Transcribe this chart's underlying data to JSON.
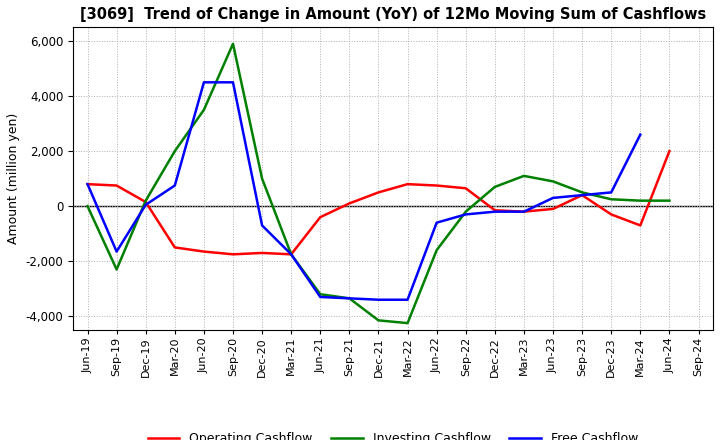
{
  "title": "[3069]  Trend of Change in Amount (YoY) of 12Mo Moving Sum of Cashflows",
  "ylabel": "Amount (million yen)",
  "x_labels": [
    "Jun-19",
    "Sep-19",
    "Dec-19",
    "Mar-20",
    "Jun-20",
    "Sep-20",
    "Dec-20",
    "Mar-21",
    "Jun-21",
    "Sep-21",
    "Dec-21",
    "Mar-22",
    "Jun-22",
    "Sep-22",
    "Dec-22",
    "Mar-23",
    "Jun-23",
    "Sep-23",
    "Dec-23",
    "Mar-24",
    "Jun-24",
    "Sep-24"
  ],
  "operating": [
    800,
    750,
    150,
    -1500,
    -1650,
    -1750,
    -1700,
    -1750,
    -400,
    100,
    500,
    800,
    750,
    650,
    -150,
    -200,
    -100,
    400,
    -300,
    -700,
    2000,
    null
  ],
  "investing": [
    0,
    -2300,
    200,
    2000,
    3500,
    5900,
    1000,
    -1750,
    -3200,
    -3350,
    -4150,
    -4250,
    -1600,
    -200,
    700,
    1100,
    900,
    500,
    250,
    200,
    200,
    null
  ],
  "free": [
    800,
    -1650,
    50,
    750,
    4500,
    4500,
    -700,
    -1750,
    -3300,
    -3350,
    -3400,
    -3400,
    -600,
    -300,
    -200,
    -200,
    300,
    400,
    500,
    2600,
    null,
    null
  ],
  "ylim": [
    -4500,
    6500
  ],
  "yticks": [
    -4000,
    -2000,
    0,
    2000,
    4000,
    6000
  ],
  "operating_color": "#ff0000",
  "investing_color": "#008000",
  "free_color": "#0000ff",
  "background_color": "#ffffff",
  "grid_color": "#b0b0b0"
}
